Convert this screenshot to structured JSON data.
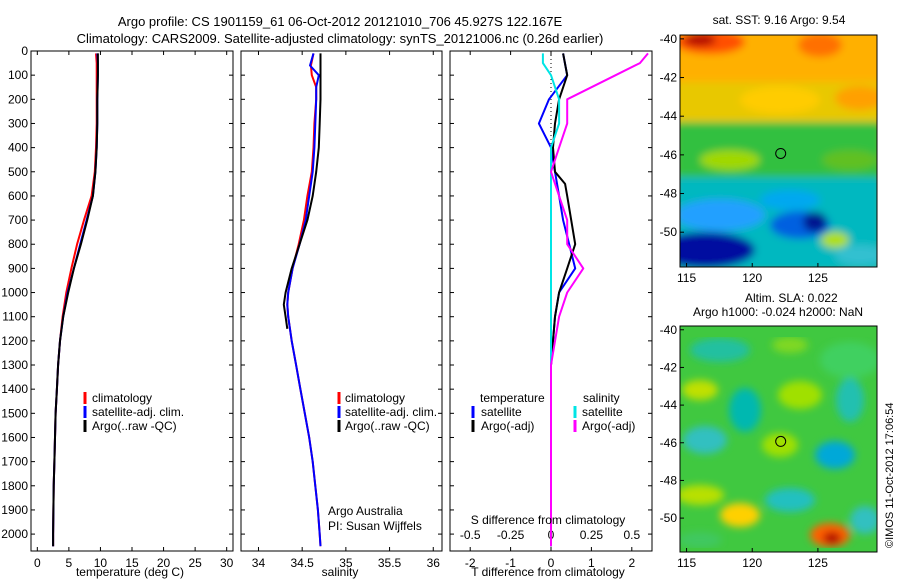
{
  "header": {
    "line1": "Argo profile: CS 1901159_61 06-Oct-2012 20121010_706 45.927S 122.167E",
    "line2": "Climatology: CARS2009. Satellite-adjusted climatology: synTS_20121006.nc (0.26d earlier)"
  },
  "colors": {
    "climatology": "#ff0000",
    "satellite": "#0000ff",
    "argo": "#000000",
    "salinity_satellite": "#00e5e5",
    "salinity_argo": "#ff00ff",
    "float_marker": "#000000"
  },
  "shared_depth_axis": {
    "ticks": [
      0,
      100,
      200,
      300,
      400,
      500,
      600,
      700,
      800,
      900,
      1000,
      1100,
      1200,
      1300,
      1400,
      1500,
      1600,
      1700,
      1800,
      1900,
      2000
    ],
    "ylim": [
      2070,
      0
    ]
  },
  "chart_data": [
    {
      "id": "temperature",
      "type": "line",
      "xlabel": "temperature (deg C)",
      "xlim": [
        -1,
        31
      ],
      "xticks": [
        0,
        5,
        10,
        15,
        20,
        25,
        30
      ],
      "legend": [
        "climatology",
        "satellite-adj. clim.",
        "Argo(..raw -QC)"
      ],
      "series": [
        {
          "key": "climatology",
          "depth": [
            10,
            50,
            100,
            200,
            300,
            400,
            500,
            600,
            700,
            800,
            900,
            1000,
            1100,
            1200,
            1300,
            1400,
            1500,
            1600,
            1700,
            1800,
            1900,
            2000,
            2050
          ],
          "values": [
            9.3,
            9.4,
            9.4,
            9.4,
            9.4,
            9.3,
            9.1,
            8.6,
            7.4,
            6.3,
            5.4,
            4.6,
            4.0,
            3.6,
            3.3,
            3.1,
            2.9,
            2.8,
            2.7,
            2.6,
            2.55,
            2.5,
            2.5
          ]
        },
        {
          "key": "satellite",
          "depth": [
            10,
            50,
            100,
            200,
            300,
            400,
            500,
            600,
            700,
            800,
            900,
            1000,
            1100,
            1200,
            1300,
            1400,
            1500,
            1600,
            1700,
            1800,
            1900,
            2000,
            2050
          ],
          "values": [
            9.5,
            9.6,
            9.6,
            9.5,
            9.5,
            9.4,
            9.2,
            8.8,
            7.8,
            6.8,
            5.8,
            4.8,
            4.1,
            3.6,
            3.3,
            3.1,
            2.9,
            2.8,
            2.7,
            2.6,
            2.55,
            2.5,
            2.5
          ]
        },
        {
          "key": "argo",
          "depth": [
            10,
            50,
            100,
            200,
            300,
            400,
            500,
            600,
            700,
            800,
            900,
            1000,
            1100,
            1200,
            1300,
            1400,
            1500,
            1600,
            1700,
            1800,
            1900,
            2000,
            2050
          ],
          "values": [
            9.6,
            9.6,
            9.6,
            9.5,
            9.5,
            9.4,
            9.2,
            8.8,
            7.9,
            6.9,
            5.8,
            4.9,
            4.1,
            3.6,
            3.3,
            3.1,
            2.9,
            2.8,
            2.7,
            2.6,
            2.55,
            2.5,
            2.5
          ]
        }
      ]
    },
    {
      "id": "salinity",
      "type": "line",
      "xlabel": "salinity",
      "xlim": [
        33.8,
        36.1
      ],
      "xticks": [
        34,
        34.5,
        35,
        35.5,
        36
      ],
      "legend": [
        "climatology",
        "satellite-adj. clim.",
        "Argo(..raw -QC)"
      ],
      "annotation": [
        "Argo Australia",
        "PI: Susan Wijffels"
      ],
      "series": [
        {
          "key": "climatology",
          "depth": [
            10,
            60,
            100,
            150,
            200,
            300,
            400,
            500,
            600,
            700,
            800,
            900,
            1000,
            1050,
            1100,
            1200,
            1300,
            1400,
            1500,
            1600,
            1700,
            1800,
            1900,
            2000,
            2050
          ],
          "values": [
            34.63,
            34.6,
            34.61,
            34.66,
            34.66,
            34.64,
            34.63,
            34.61,
            34.56,
            34.52,
            34.46,
            34.39,
            34.34,
            34.33,
            34.34,
            34.38,
            34.43,
            34.48,
            34.53,
            34.58,
            34.62,
            34.65,
            34.68,
            34.7,
            34.71
          ]
        },
        {
          "key": "satellite",
          "depth": [
            10,
            60,
            100,
            150,
            200,
            300,
            400,
            500,
            600,
            700,
            800,
            900,
            1000,
            1050,
            1100,
            1200,
            1300,
            1400,
            1500,
            1600,
            1700,
            1800,
            1900,
            2000,
            2050
          ],
          "values": [
            34.63,
            34.59,
            34.69,
            34.66,
            34.66,
            34.65,
            34.64,
            34.62,
            34.58,
            34.54,
            34.47,
            34.39,
            34.34,
            34.33,
            34.34,
            34.38,
            34.43,
            34.48,
            34.53,
            34.58,
            34.62,
            34.65,
            34.68,
            34.7,
            34.71
          ]
        },
        {
          "key": "argo",
          "depth": [
            10,
            100,
            200,
            300,
            400,
            500,
            600,
            700,
            800,
            900,
            1000,
            1050,
            1100,
            1150
          ],
          "values": [
            34.71,
            34.71,
            34.71,
            34.7,
            34.69,
            34.66,
            34.62,
            34.56,
            34.47,
            34.38,
            34.31,
            34.29,
            34.31,
            34.33
          ]
        }
      ]
    },
    {
      "id": "difference",
      "type": "line",
      "xlabel": "T difference from climatology",
      "xlim": [
        -2.5,
        2.5
      ],
      "xticks": [
        -2,
        -1,
        0,
        1,
        2
      ],
      "top_label": "S difference from climatology",
      "top_ticks": [
        -0.5,
        -0.25,
        0,
        0.25,
        0.5
      ],
      "legend_titles": [
        "temperature",
        "salinity"
      ],
      "legend": [
        "satellite",
        "Argo(-adj)",
        "satellite",
        "Argo(-adj)"
      ],
      "series": [
        {
          "key": "satellite",
          "depth": [
            10,
            100,
            200,
            300,
            400,
            500,
            600,
            700,
            800,
            900,
            1000,
            1100,
            1200,
            1300,
            1500,
            2050
          ],
          "values": [
            0.3,
            0.4,
            -0.05,
            -0.3,
            0.0,
            0.1,
            0.2,
            0.3,
            0.45,
            0.6,
            0.2,
            0.1,
            0.05,
            0,
            0,
            0
          ]
        },
        {
          "key": "argo",
          "depth": [
            10,
            100,
            200,
            300,
            400,
            500,
            550,
            600,
            700,
            800,
            900,
            1000,
            1100,
            1200,
            1300,
            1500,
            2050
          ],
          "values": [
            0.3,
            0.4,
            0.2,
            0.1,
            0.05,
            0.1,
            0.35,
            0.4,
            0.5,
            0.6,
            0.4,
            0.2,
            0.1,
            0.05,
            0,
            0,
            0
          ]
        },
        {
          "key": "salinity_satellite",
          "depth": [
            10,
            50,
            100,
            200,
            300,
            400,
            500,
            700,
            900,
            1100,
            1300,
            1500,
            2050
          ],
          "values": [
            -0.05,
            -0.05,
            0.0,
            0.05,
            0.05,
            0.0,
            0.0,
            0.0,
            0.0,
            0.0,
            0.0,
            0.0,
            0.0
          ]
        },
        {
          "key": "salinity_argo",
          "depth": [
            10,
            50,
            100,
            200,
            300,
            400,
            500,
            600,
            700,
            800,
            900,
            1000,
            1100,
            1300,
            1500,
            2050
          ],
          "values": [
            0.6,
            0.55,
            0.4,
            0.1,
            0.1,
            0.05,
            0.0,
            0.05,
            0.1,
            0.1,
            0.2,
            0.1,
            0.05,
            0.0,
            0.0,
            0.0
          ]
        }
      ]
    },
    {
      "id": "sst_map",
      "type": "heatmap",
      "title": "sat. SST: 9.16 Argo: 9.54",
      "xticks": [
        115,
        120,
        125
      ],
      "yticks": [
        -40,
        -42,
        -44,
        -46,
        -48,
        -50
      ],
      "xlim": [
        114.5,
        129.5
      ],
      "ylim": [
        -51.8,
        -39.8
      ],
      "float_position": {
        "lon": 122.167,
        "lat": -45.927
      }
    },
    {
      "id": "sla_map",
      "type": "heatmap",
      "title_line1": "Altim. SLA: 0.022",
      "title_line2": "Argo h1000: -0.024 h2000: NaN",
      "xticks": [
        115,
        120,
        125
      ],
      "yticks": [
        -40,
        -42,
        -44,
        -46,
        -48,
        -50
      ],
      "xlim": [
        114.5,
        129.5
      ],
      "ylim": [
        -51.8,
        -39.8
      ],
      "float_position": {
        "lon": 122.167,
        "lat": -45.927
      }
    }
  ],
  "footer": {
    "watermark": "©IMOS 11-Oct-2012 17:06:54"
  }
}
